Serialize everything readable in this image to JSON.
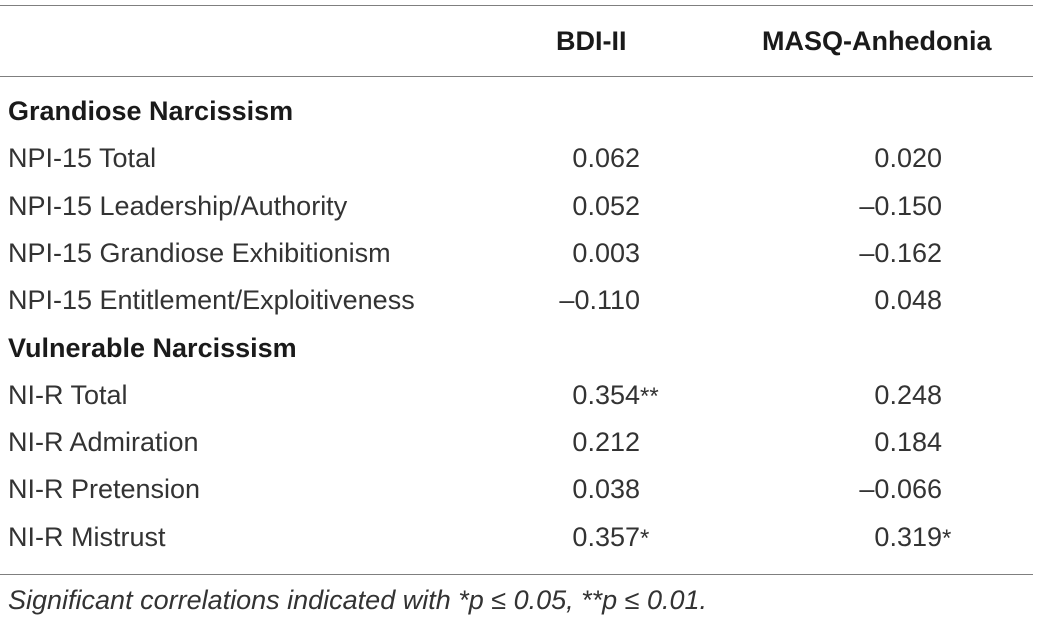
{
  "table": {
    "columns": [
      "",
      "BDI-II",
      "MASQ-Anhedonia"
    ],
    "rows": [
      {
        "label": "Grandiose Narcissism",
        "section": true,
        "bdi": "",
        "bdi_sig": "",
        "masq": "",
        "masq_sig": ""
      },
      {
        "label": "NPI-15 Total",
        "section": false,
        "bdi": "0.062",
        "bdi_sig": "",
        "masq": "0.020",
        "masq_sig": ""
      },
      {
        "label": "NPI-15 Leadership/Authority",
        "section": false,
        "bdi": "0.052",
        "bdi_sig": "",
        "masq": "–0.150",
        "masq_sig": ""
      },
      {
        "label": "NPI-15 Grandiose Exhibitionism",
        "section": false,
        "bdi": "0.003",
        "bdi_sig": "",
        "masq": "–0.162",
        "masq_sig": ""
      },
      {
        "label": "NPI-15 Entitlement/Exploitiveness",
        "section": false,
        "bdi": "–0.110",
        "bdi_sig": "",
        "masq": "0.048",
        "masq_sig": ""
      },
      {
        "label": "Vulnerable Narcissism",
        "section": true,
        "bdi": "",
        "bdi_sig": "",
        "masq": "",
        "masq_sig": ""
      },
      {
        "label": "NI-R Total",
        "section": false,
        "bdi": "0.354",
        "bdi_sig": "**",
        "masq": "0.248",
        "masq_sig": ""
      },
      {
        "label": "NI-R Admiration",
        "section": false,
        "bdi": "0.212",
        "bdi_sig": "",
        "masq": "0.184",
        "masq_sig": ""
      },
      {
        "label": "NI-R Pretension",
        "section": false,
        "bdi": "0.038",
        "bdi_sig": "",
        "masq": "–0.066",
        "masq_sig": ""
      },
      {
        "label": "NI-R Mistrust",
        "section": false,
        "bdi": "0.357",
        "bdi_sig": "*",
        "masq": "0.319",
        "masq_sig": "*"
      }
    ],
    "note": "Significant correlations indicated with *p ≤ 0.05, **p ≤ 0.01."
  }
}
